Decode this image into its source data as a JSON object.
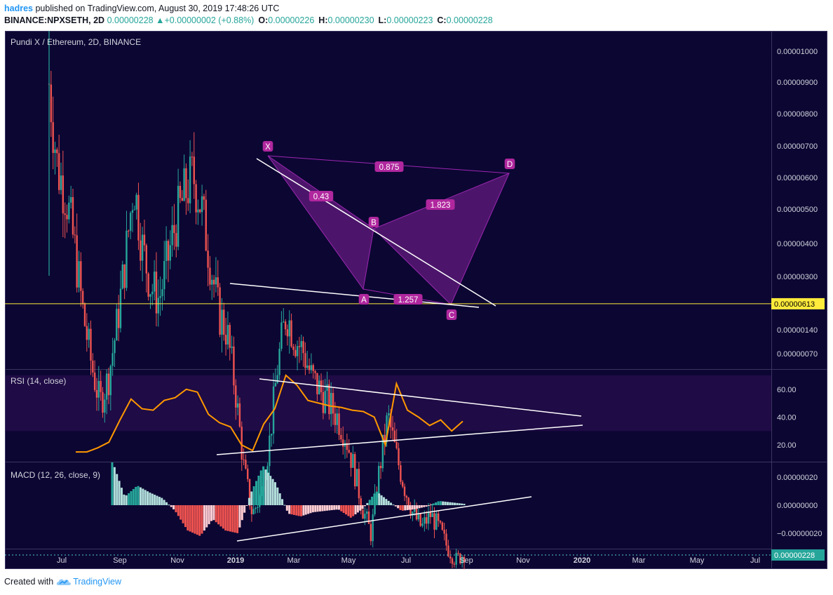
{
  "header": {
    "user": "hadres",
    "published_text": " published on TradingView.com, August 30, 2019 17:48:26 UTC",
    "symbol": "BINANCE:NPXSETH, 2D",
    "price": "0.00000228",
    "change": "+0.00000002 (+0.88%)",
    "o_label": "O:",
    "o": "0.00000226",
    "h_label": "H:",
    "h": "0.00000230",
    "l_label": "L:",
    "l": "0.00000223",
    "c_label": "C:",
    "c": "0.00000228"
  },
  "footer": {
    "created_with": "Created with",
    "brand": "TradingView"
  },
  "colors": {
    "pane_bg": "#0c0633",
    "rsi_band": "#1f0b45",
    "up": "#26a69a",
    "down": "#ef5350",
    "harmonic": "#9c27b0",
    "harmonic_label": "#b0279e",
    "yellow_line": "#ffeb3b",
    "price_line": "#4dd0c8",
    "rsi_line": "#ff9800",
    "trend": "#ffffff"
  },
  "chart_data": [
    {
      "type": "candlestick",
      "title": "Pundi X / Ethereum, 2D, BINANCE",
      "y_ticks": [
        "0.00001000",
        "0.00000900",
        "0.00000800",
        "0.00000700",
        "0.00000600",
        "0.00000500",
        "0.00000400",
        "0.00000300",
        "0.00000140",
        "0.00000070"
      ],
      "highlight_level": "0.00000613",
      "last_price": "0.00000228",
      "x_ticks": [
        "Jul",
        "Sep",
        "Nov",
        "2019",
        "Mar",
        "May",
        "Jul",
        "Sep",
        "Nov",
        "2020",
        "Mar",
        "May",
        "Jul"
      ],
      "pattern_points": [
        "X",
        "A",
        "B",
        "C",
        "D"
      ],
      "ratios": [
        "0.875",
        "0.43",
        "1.823",
        "1.257"
      ],
      "close_series": [
        9.5e-06,
        8.2e-06,
        7.8e-06,
        7e-06,
        6e-06,
        5.2e-06,
        4.6e-06,
        5e-06,
        5.8e-06,
        6.8e-06,
        8e-06,
        7e-06,
        6.4e-06,
        6.2e-06,
        6.8e-06,
        7.4e-06,
        7.8e-06,
        8.1e-06,
        7.6e-06,
        6.8e-06,
        6e-06,
        5.7e-06,
        4.8e-06,
        3.6e-06,
        2.9e-06,
        3.2e-06,
        4e-06,
        5.2e-06,
        6e-06,
        5.6e-06,
        5.4e-06,
        5e-06,
        4.8e-06,
        4.6e-06,
        4.4e-06,
        4.1e-06,
        3.6e-06,
        3e-06,
        2.6e-06,
        3.6e-06,
        4.4e-06,
        3.8e-06,
        3.3e-06,
        2.9e-06,
        2.7e-06,
        2.9e-06,
        2.7e-06,
        2.4e-06,
        2.2e-06,
        2.3e-06
      ]
    },
    {
      "type": "line",
      "title": "RSI (14, close)",
      "y_ticks": [
        "60.00",
        "40.00",
        "20.00"
      ],
      "ylim": [
        8,
        74
      ],
      "band": [
        30,
        70
      ],
      "x": [
        0,
        3,
        6,
        9,
        12,
        15,
        18,
        21,
        24,
        27,
        30,
        33,
        36,
        39,
        42,
        45,
        48,
        51,
        54,
        57,
        60,
        63,
        66,
        69,
        72,
        75,
        78,
        81,
        84,
        87,
        90,
        93,
        96,
        99,
        102,
        105
      ],
      "values": [
        15,
        15,
        18,
        22,
        38,
        53,
        46,
        45,
        52,
        54,
        60,
        58,
        42,
        36,
        33,
        20,
        16,
        35,
        46,
        70,
        63,
        52,
        50,
        48,
        47,
        45,
        44,
        40,
        20,
        64,
        45,
        40,
        34,
        38,
        30,
        37
      ]
    },
    {
      "type": "bar",
      "title": "MACD (12, 26, close, 9)",
      "y_ticks": [
        "0.00000020",
        "0.00000000",
        "−0.00000020"
      ],
      "ylim": [
        -2.8e-07,
        2.8e-07
      ],
      "values": [
        3.2e-07,
        6e-08,
        1.4e-07,
        9e-08,
        5e-08,
        -4e-08,
        -1.8e-07,
        -2.2e-07,
        -1e-07,
        -1.8e-07,
        -2e-07,
        8e-08,
        2.8e-07,
        1.6e-07,
        -6e-08,
        -8e-08,
        -5e-08,
        -4e-08,
        -3e-08,
        -9e-08,
        -2e-08,
        1e-07,
        3e-08,
        -4e-08,
        -3e-08,
        -1e-08,
        3e-08,
        2e-08,
        1e-08
      ]
    }
  ]
}
